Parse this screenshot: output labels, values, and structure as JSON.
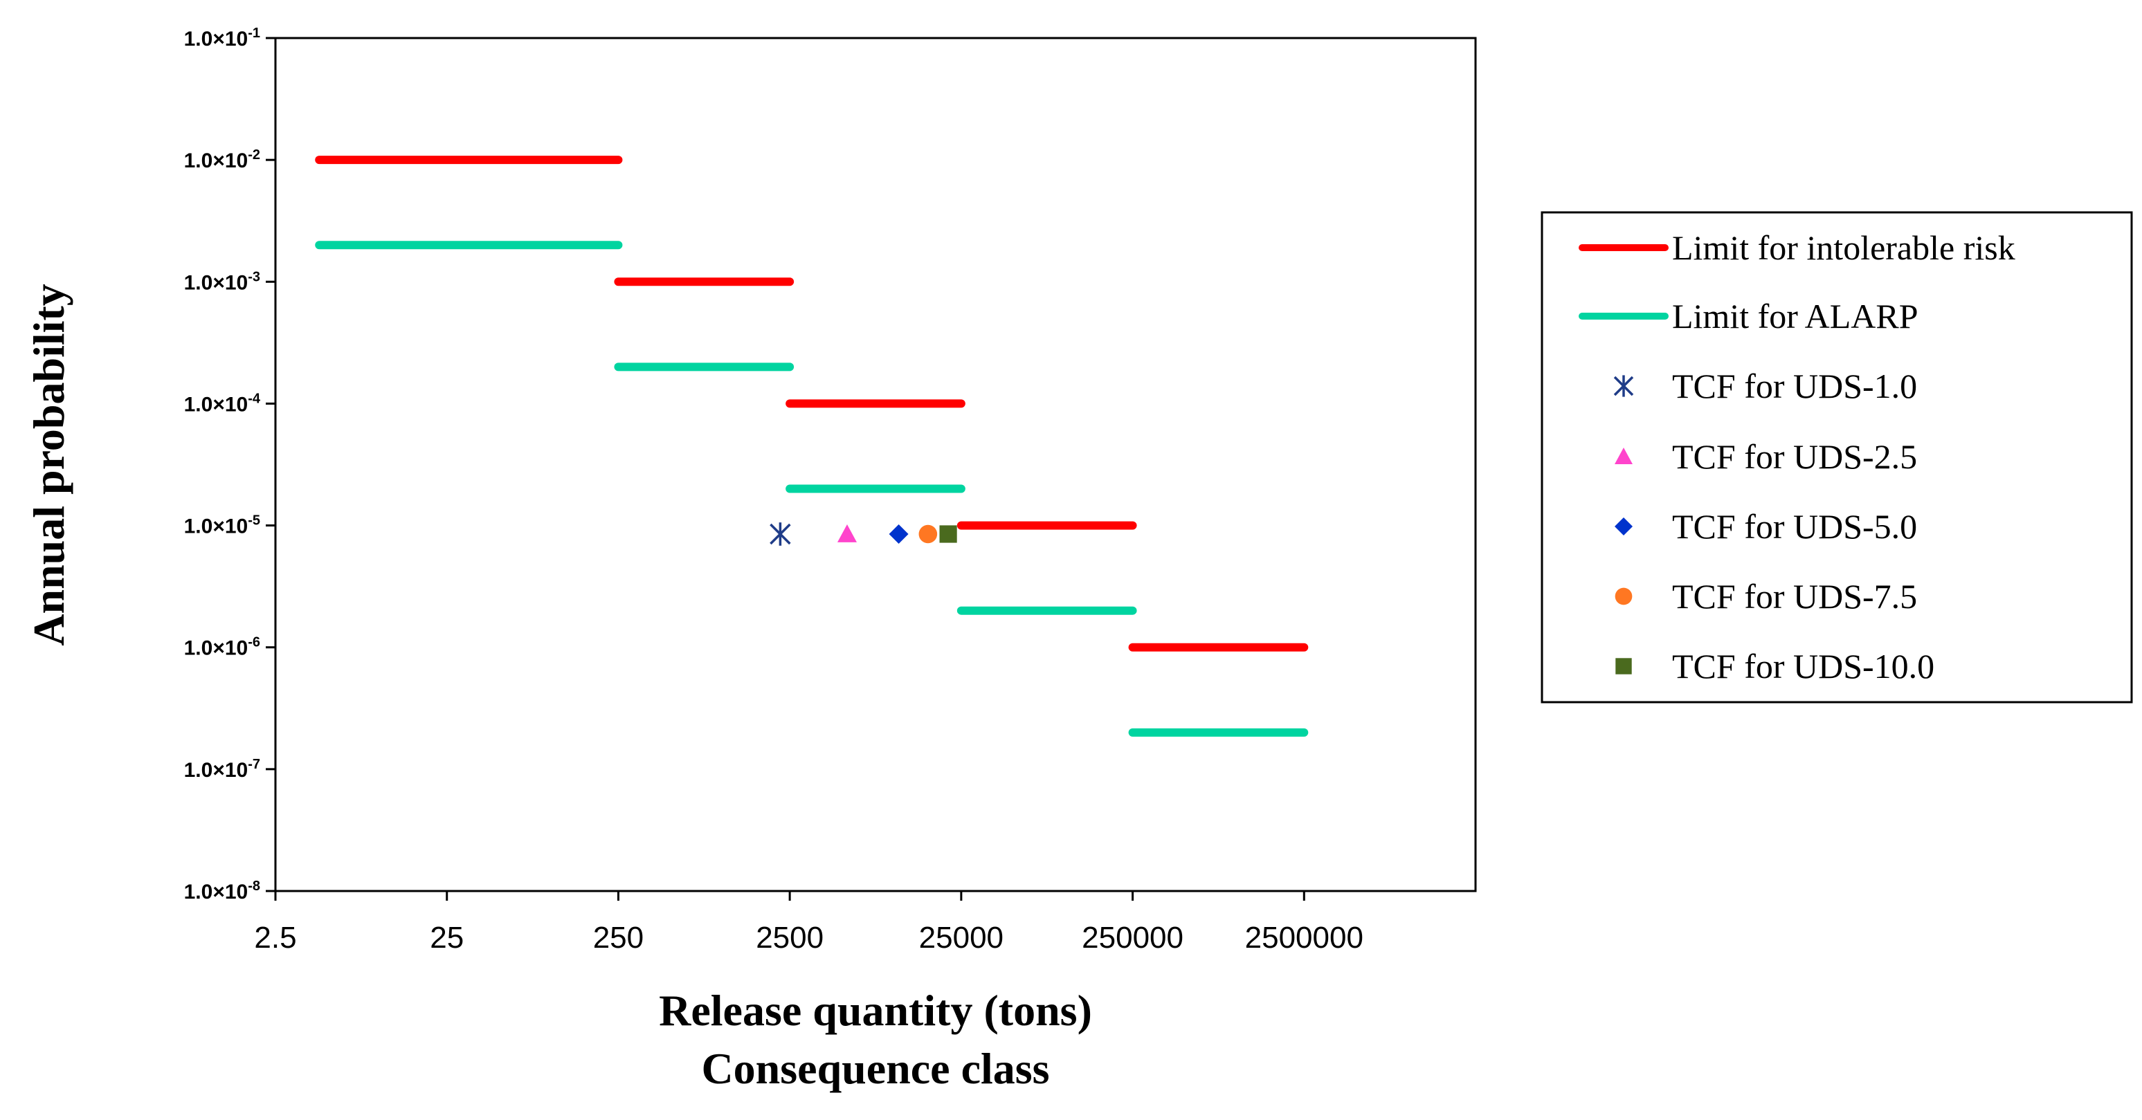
{
  "chart_data": {
    "type": "scatter",
    "xlabel": "Release quantity (tons)",
    "xlabel2": "Consequence class",
    "ylabel": "Annual probability",
    "x_scale": "log",
    "y_scale": "log",
    "xlim": [
      2.5,
      25000000
    ],
    "ylim": [
      1e-08,
      0.1
    ],
    "x_ticks": [
      {
        "value": 2.5,
        "label": "2.5"
      },
      {
        "value": 25,
        "label": "25"
      },
      {
        "value": 250,
        "label": "250"
      },
      {
        "value": 2500,
        "label": "2500"
      },
      {
        "value": 25000,
        "label": "25000"
      },
      {
        "value": 250000,
        "label": "250000"
      },
      {
        "value": 2500000,
        "label": "2500000"
      }
    ],
    "y_ticks": [
      {
        "value": 0.1,
        "base": "1.0×10",
        "exp": "-1"
      },
      {
        "value": 0.01,
        "base": "1.0×10",
        "exp": "-2"
      },
      {
        "value": 0.001,
        "base": "1.0×10",
        "exp": "-3"
      },
      {
        "value": 0.0001,
        "base": "1.0×10",
        "exp": "-4"
      },
      {
        "value": 1e-05,
        "base": "1.0×10",
        "exp": "-5"
      },
      {
        "value": 1e-06,
        "base": "1.0×10",
        "exp": "-6"
      },
      {
        "value": 1e-07,
        "base": "1.0×10",
        "exp": "-7"
      },
      {
        "value": 1e-08,
        "base": "1.0×10",
        "exp": "-8"
      }
    ],
    "grid": false,
    "legend_position": "right",
    "step_series": [
      {
        "name": "Limit for intolerable risk",
        "color": "#ff0000",
        "segments": [
          {
            "x0": 4.5,
            "x1": 250,
            "y": 0.01
          },
          {
            "x0": 250,
            "x1": 2500,
            "y": 0.001
          },
          {
            "x0": 2500,
            "x1": 25000,
            "y": 0.0001
          },
          {
            "x0": 25000,
            "x1": 250000,
            "y": 1e-05
          },
          {
            "x0": 250000,
            "x1": 2500000,
            "y": 1e-06
          }
        ]
      },
      {
        "name": "Limit for ALARP",
        "color": "#00d4a0",
        "segments": [
          {
            "x0": 4.5,
            "x1": 250,
            "y": 0.002
          },
          {
            "x0": 250,
            "x1": 2500,
            "y": 0.0002
          },
          {
            "x0": 2500,
            "x1": 25000,
            "y": 2e-05
          },
          {
            "x0": 25000,
            "x1": 250000,
            "y": 2e-06
          },
          {
            "x0": 250000,
            "x1": 2500000,
            "y": 2e-07
          }
        ]
      }
    ],
    "point_series": [
      {
        "name": "TCF for UDS-1.0",
        "marker": "asterisk",
        "color": "#1f3c88",
        "x": 2200,
        "y": 8.5e-06
      },
      {
        "name": "TCF for UDS-2.5",
        "marker": "triangle",
        "color": "#ff44cc",
        "x": 5400,
        "y": 8.5e-06
      },
      {
        "name": "TCF for UDS-5.0",
        "marker": "diamond",
        "color": "#0033cc",
        "x": 10800,
        "y": 8.5e-06
      },
      {
        "name": "TCF for UDS-7.5",
        "marker": "circle",
        "color": "#ff7722",
        "x": 16000,
        "y": 8.5e-06
      },
      {
        "name": "TCF for UDS-10.0",
        "marker": "square",
        "color": "#4a6a1e",
        "x": 21000,
        "y": 8.5e-06
      }
    ]
  }
}
